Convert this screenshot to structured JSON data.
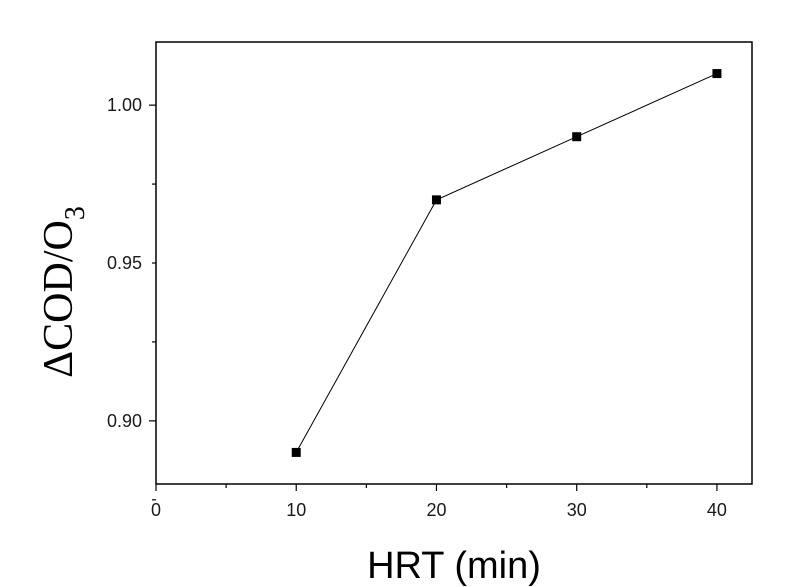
{
  "chart_data": {
    "type": "line",
    "x": [
      10,
      20,
      30,
      40
    ],
    "series": [
      {
        "values": [
          0.89,
          0.97,
          0.99,
          1.01
        ],
        "marker": "square",
        "color": "#000000"
      }
    ],
    "xlabel": "HRT (min)",
    "ylabel": {
      "main": "ΔCOD/O",
      "subscript": "3"
    },
    "xlim": [
      0,
      42.5
    ],
    "ylim": [
      0.88,
      1.02
    ],
    "xticks": [
      0,
      10,
      20,
      30,
      40
    ],
    "xtick_labels": [
      "0",
      "10",
      "20",
      "30",
      "40"
    ],
    "yticks": [
      0.9,
      0.95,
      1.0
    ],
    "ytick_labels": [
      "0.90",
      "0.95",
      "1.00"
    ],
    "grid": false,
    "legend": "none"
  }
}
